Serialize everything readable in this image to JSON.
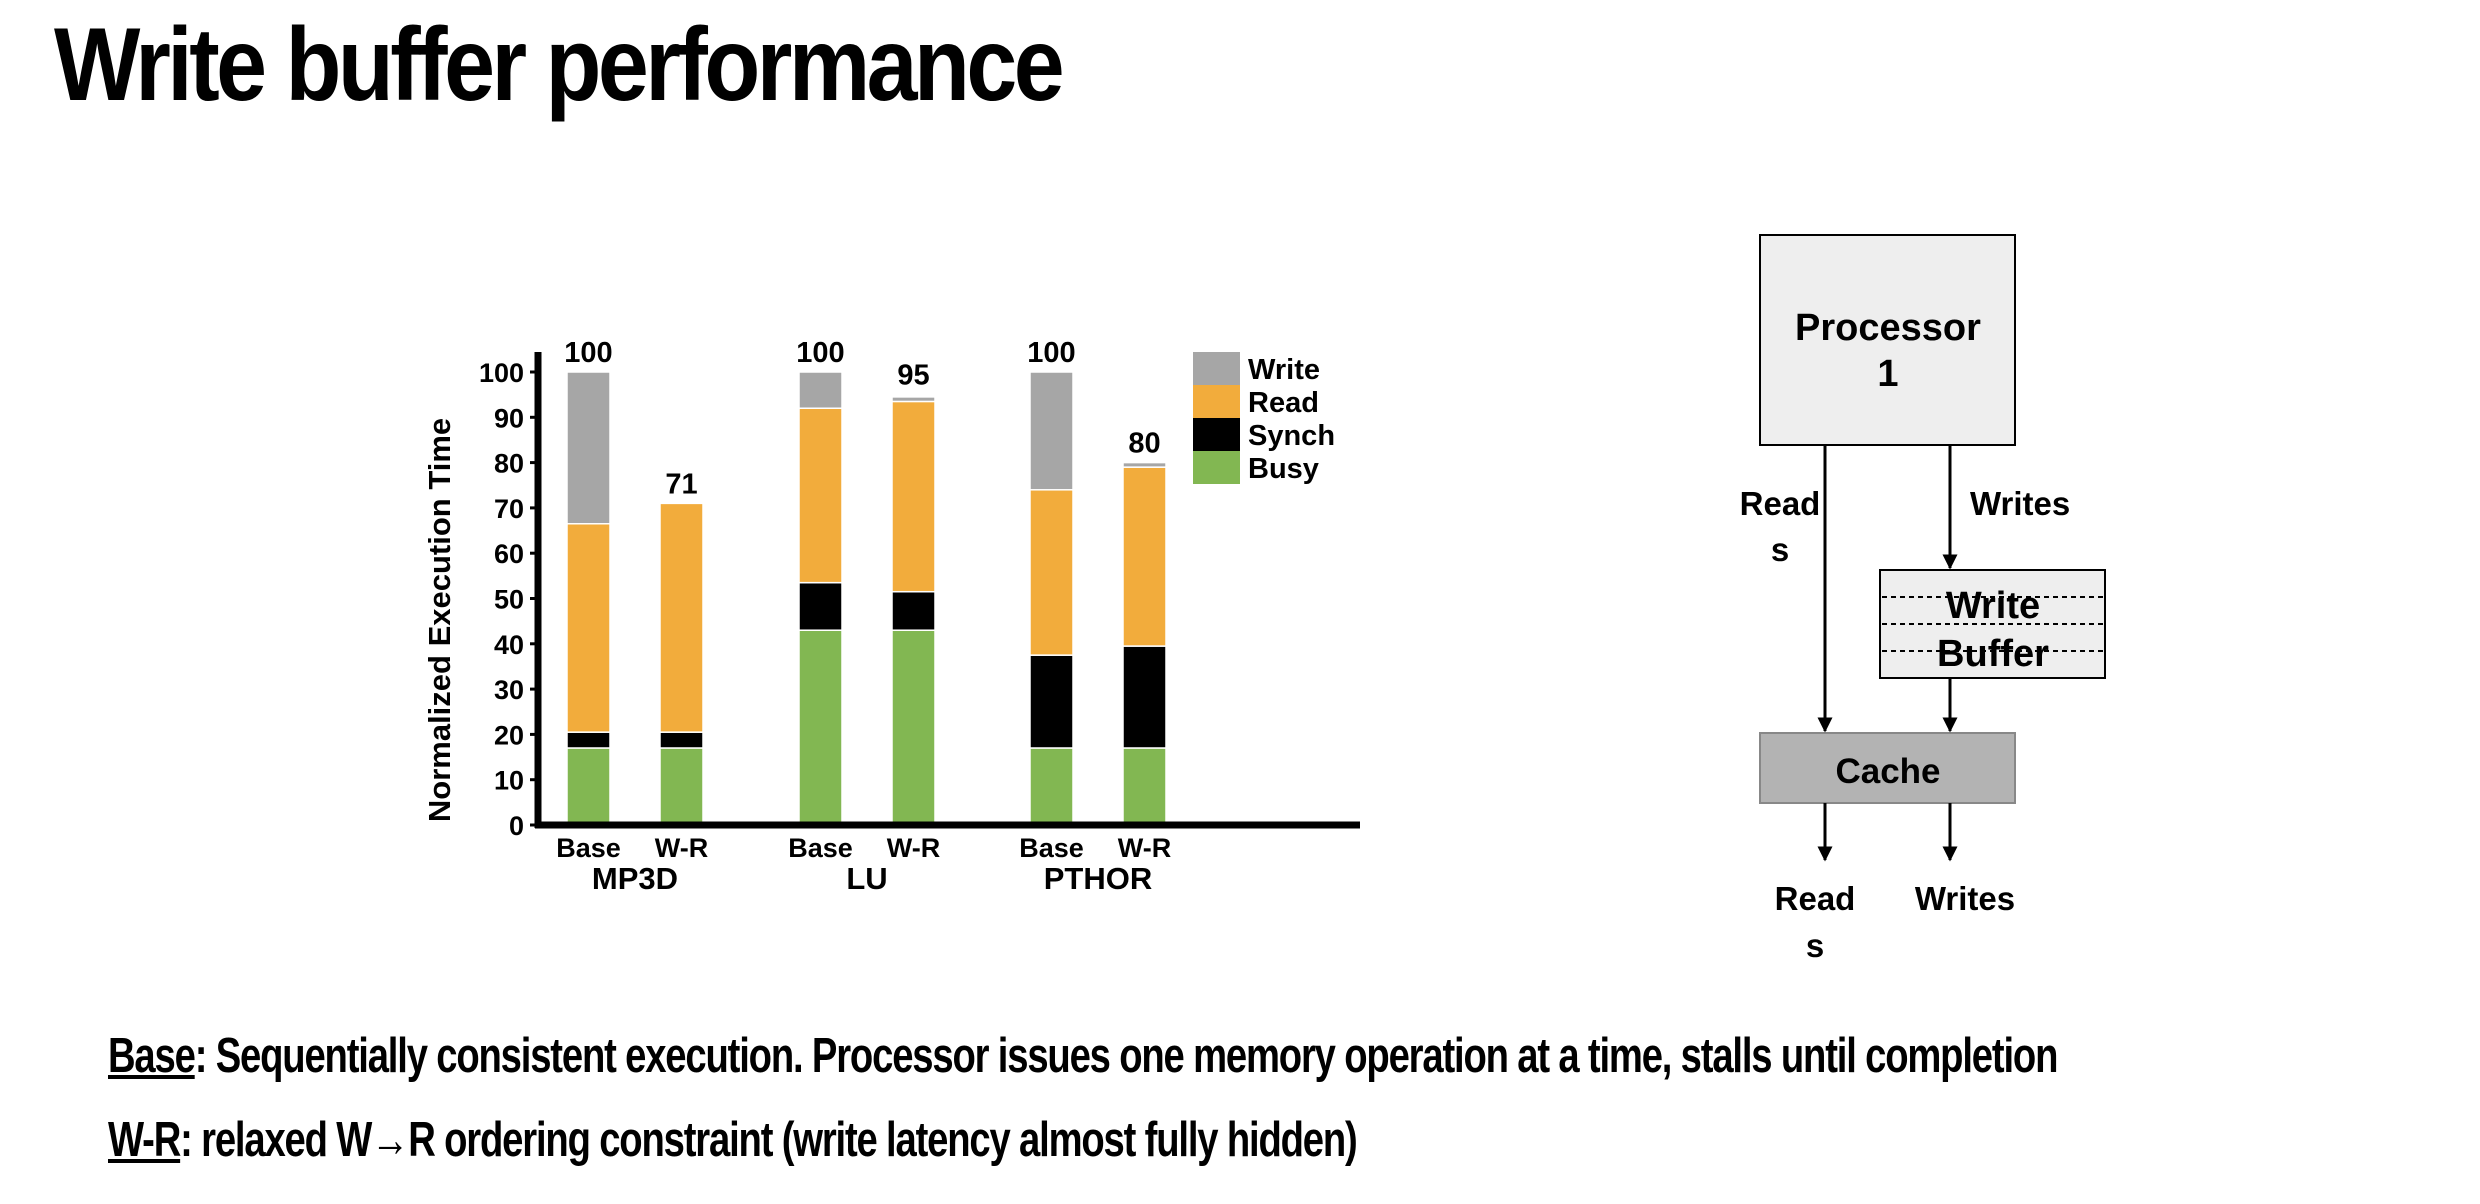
{
  "title": "Write buffer performance",
  "chart_data": {
    "type": "bar",
    "stacked": true,
    "ylabel": "Normalized Execution Time",
    "ylim": [
      0,
      100
    ],
    "yticks": [
      0,
      10,
      20,
      30,
      40,
      50,
      60,
      70,
      80,
      90,
      100
    ],
    "groups": [
      {
        "name": "MP3D",
        "bars": [
          {
            "label": "Base",
            "total": 100,
            "busy": 17,
            "synch": 3.5,
            "read": 46,
            "write": 33.5
          },
          {
            "label": "W-R",
            "total": 71,
            "busy": 17,
            "synch": 3.5,
            "read": 50.5,
            "write": 0
          }
        ]
      },
      {
        "name": "LU",
        "bars": [
          {
            "label": "Base",
            "total": 100,
            "busy": 43,
            "synch": 10.5,
            "read": 38.5,
            "write": 8
          },
          {
            "label": "W-R",
            "total": 95,
            "busy": 43,
            "synch": 8.5,
            "read": 42,
            "write": 1
          }
        ]
      },
      {
        "name": "PTHOR",
        "bars": [
          {
            "label": "Base",
            "total": 100,
            "busy": 17,
            "synch": 20.5,
            "read": 36.5,
            "write": 26
          },
          {
            "label": "W-R",
            "total": 80,
            "busy": 17,
            "synch": 22.5,
            "read": 39.5,
            "write": 1
          }
        ]
      }
    ],
    "legend": [
      {
        "key": "write",
        "label": "Write",
        "color": "#a6a6a6"
      },
      {
        "key": "read",
        "label": "Read",
        "color": "#f2ac3c"
      },
      {
        "key": "synch",
        "label": "Synch",
        "color": "#000000"
      },
      {
        "key": "busy",
        "label": "Busy",
        "color": "#82b752"
      }
    ],
    "legend_position": "top-right"
  },
  "diagram": {
    "processor": [
      "Processor",
      "1"
    ],
    "write_buffer": [
      "Write",
      "Buffer"
    ],
    "cache": "Cache",
    "reads_top": [
      "Read",
      "s"
    ],
    "writes_top": "Writes",
    "reads_bottom": [
      "Read",
      "s"
    ],
    "writes_bottom": "Writes",
    "colors": {
      "processor_fill": "#eeeeee",
      "buffer_fill": "#eeeeee",
      "cache_fill": "#b3b3b3"
    }
  },
  "captions": {
    "base_term": "Base",
    "base_text": ": Sequentially consistent execution. Processor issues one memory operation at a time, stalls until completion",
    "wr_term": "W-R",
    "wr_text": ": relaxed W→R ordering constraint (write latency almost fully hidden)"
  }
}
